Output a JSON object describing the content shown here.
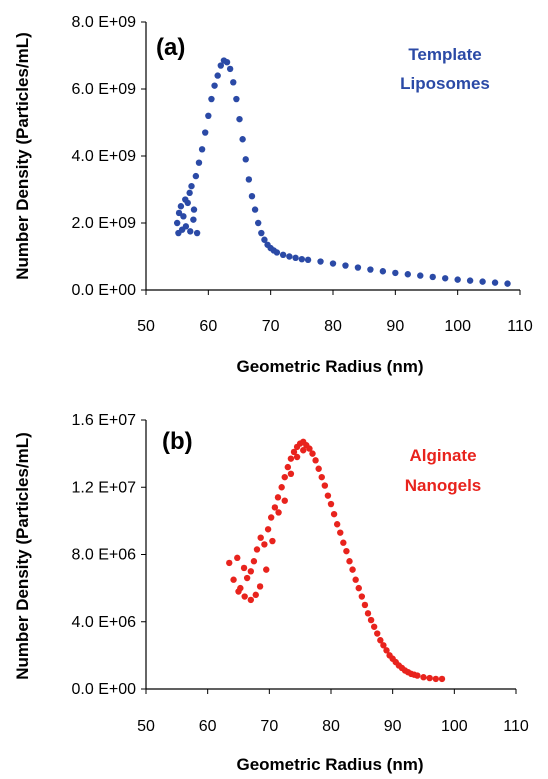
{
  "chart_data": [
    {
      "type": "scatter",
      "panel_label": "(a)",
      "legend_lines": [
        "Template",
        "Liposomes"
      ],
      "color": "#2b4aa6",
      "xlabel": "Geometric Radius (nm)",
      "ylabel": "Number Density (Particles/mL)",
      "xlim": [
        50,
        110
      ],
      "ylim": [
        0,
        8000000000
      ],
      "x_ticks": [
        50,
        60,
        70,
        80,
        90,
        100,
        110
      ],
      "y_ticks": [
        0,
        2000000000,
        4000000000,
        6000000000,
        8000000000
      ],
      "y_tick_labels": [
        "0.0 E+00",
        "2.0 E+09",
        "4.0 E+09",
        "6.0 E+09",
        "8.0 E+09"
      ],
      "grid": false,
      "legend_position": "top-right",
      "series": [
        {
          "x": [
            55.0,
            55.3,
            55.6,
            56.0,
            56.3,
            56.7,
            57.0,
            57.3,
            57.7,
            58.0,
            58.5,
            59.0,
            59.5,
            60.0,
            60.5,
            61.0,
            61.5,
            62.0,
            62.5,
            63.0,
            63.5,
            64.0,
            64.5,
            65.0,
            65.5,
            66.0,
            66.5,
            67.0,
            67.5,
            68.0,
            68.5,
            69.0,
            69.5,
            70.0,
            70.5,
            71.0,
            72.0,
            73.0,
            74.0,
            75.0,
            76.0,
            78.0,
            80.0,
            82.0,
            84.0,
            86.0,
            88.0,
            90.0,
            92.0,
            94.0,
            96.0,
            98.0,
            100.0,
            102.0,
            104.0,
            106.0,
            108.0
          ],
          "y": [
            2000000000,
            2300000000,
            2500000000,
            2200000000,
            2700000000,
            2600000000,
            2900000000,
            3100000000,
            2400000000,
            3400000000,
            3800000000,
            4200000000,
            4700000000,
            5200000000,
            5700000000,
            6100000000,
            6400000000,
            6700000000,
            6850000000,
            6800000000,
            6600000000,
            6200000000,
            5700000000,
            5100000000,
            4500000000,
            3900000000,
            3300000000,
            2800000000,
            2400000000,
            2000000000,
            1700000000,
            1500000000,
            1350000000,
            1250000000,
            1180000000,
            1120000000,
            1050000000,
            1000000000,
            960000000,
            920000000,
            900000000,
            850000000,
            790000000,
            730000000,
            670000000,
            610000000,
            560000000,
            510000000,
            470000000,
            430000000,
            390000000,
            350000000,
            310000000,
            280000000,
            250000000,
            220000000,
            190000000
          ]
        },
        {
          "x": [
            55.2,
            55.8,
            56.4,
            57.1,
            57.6,
            58.2
          ],
          "y": [
            1700000000,
            1800000000,
            1900000000,
            1750000000,
            2100000000,
            1700000000
          ]
        }
      ]
    },
    {
      "type": "scatter",
      "panel_label": "(b)",
      "legend_lines": [
        "Alginate",
        "Nanogels"
      ],
      "color": "#e8231d",
      "xlabel": "Geometric Radius (nm)",
      "ylabel": "Number Density (Particles/mL)",
      "xlim": [
        50,
        110
      ],
      "ylim": [
        0,
        16000000
      ],
      "x_ticks": [
        50,
        60,
        70,
        80,
        90,
        100,
        110
      ],
      "y_ticks": [
        0,
        4000000,
        8000000,
        12000000,
        16000000
      ],
      "y_tick_labels": [
        "0.0 E+00",
        "4.0 E+06",
        "8.0 E+06",
        "1.2 E+07",
        "1.6 E+07"
      ],
      "grid": false,
      "legend_position": "top-right",
      "series": [
        {
          "x": [
            63.5,
            64.2,
            64.8,
            65.3,
            65.9,
            66.4,
            67.0,
            67.5,
            68.0,
            68.6,
            69.2,
            69.8,
            70.3,
            70.9,
            71.4,
            72.0,
            72.5,
            73.0,
            73.5,
            74.0,
            74.5,
            75.0,
            75.5,
            76.0,
            76.5,
            77.0,
            77.5,
            78.0,
            78.5,
            79.0,
            79.5,
            80.0,
            80.5,
            81.0,
            81.5,
            82.0,
            82.5,
            83.0,
            83.5,
            84.0,
            84.5,
            85.0,
            85.5,
            86.0,
            86.5,
            87.0,
            87.5,
            88.0,
            88.5,
            89.0,
            89.5,
            90.0,
            90.5,
            91.0,
            91.5,
            92.0,
            92.5,
            93.0,
            93.5,
            94.0,
            95.0,
            96.0,
            97.0,
            98.0
          ],
          "y": [
            7500000,
            6500000,
            7800000,
            6000000,
            7200000,
            6600000,
            7000000,
            7600000,
            8300000,
            9000000,
            8600000,
            9500000,
            10200000,
            10800000,
            11400000,
            12000000,
            12600000,
            13200000,
            13700000,
            14100000,
            14400000,
            14600000,
            14700000,
            14500000,
            14300000,
            14000000,
            13600000,
            13100000,
            12600000,
            12100000,
            11500000,
            11000000,
            10400000,
            9800000,
            9300000,
            8700000,
            8200000,
            7600000,
            7100000,
            6500000,
            6000000,
            5500000,
            5000000,
            4500000,
            4100000,
            3700000,
            3300000,
            2900000,
            2600000,
            2300000,
            2000000,
            1800000,
            1600000,
            1400000,
            1250000,
            1100000,
            1000000,
            900000,
            850000,
            800000,
            700000,
            650000,
            600000,
            600000
          ]
        },
        {
          "x": [
            65.0,
            66.0,
            67.0,
            67.8,
            68.5,
            69.5,
            70.5,
            71.5,
            72.5,
            73.5,
            74.5,
            75.5
          ],
          "y": [
            5800000,
            5500000,
            5300000,
            5600000,
            6100000,
            7100000,
            8800000,
            10500000,
            11200000,
            12800000,
            13800000,
            14200000
          ]
        }
      ]
    }
  ]
}
